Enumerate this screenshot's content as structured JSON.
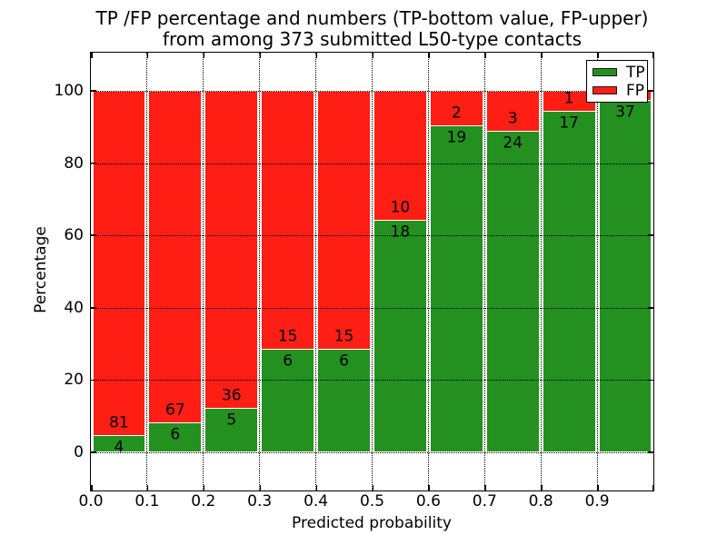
{
  "title": {
    "line1": "TP /FP percentage and numbers (TP-bottom value, FP-upper)",
    "line2": "from among 373 submitted L50-type contacts"
  },
  "axes": {
    "xlabel": "Predicted probability",
    "ylabel": "Percentage",
    "x_tick_labels": [
      "0.0",
      "0.1",
      "0.2",
      "0.3",
      "0.4",
      "0.5",
      "0.6",
      "0.7",
      "0.8",
      "0.9"
    ],
    "y_tick_labels": [
      "0",
      "20",
      "40",
      "60",
      "80",
      "100"
    ]
  },
  "legend": {
    "items": [
      {
        "label": "TP",
        "color": "#23901f"
      },
      {
        "label": "FP",
        "color": "#ff1e14"
      }
    ]
  },
  "colors": {
    "tp": "#23901f",
    "fp": "#ff1e14",
    "bar_edge": "#ffffff",
    "grid": "#000000",
    "frame": "#000000",
    "background": "#ffffff"
  },
  "chart_data": {
    "type": "stacked-bar-percentage",
    "title": "TP /FP percentage and numbers (TP-bottom value, FP-upper) from among 373 submitted L50-type contacts",
    "xlabel": "Predicted probability",
    "ylabel": "Percentage",
    "total_contacts": 373,
    "bin_width": 0.1,
    "xlim": [
      0.0,
      1.0
    ],
    "ylim_approx": [
      -10.7,
      110.4
    ],
    "y_ticks": [
      0,
      20,
      40,
      60,
      80,
      100
    ],
    "x_ticks": [
      0.0,
      0.1,
      0.2,
      0.3,
      0.4,
      0.5,
      0.6,
      0.7,
      0.8,
      0.9
    ],
    "grid": "dotted black, both axes, drawn over bars",
    "legend_position": "upper right",
    "series_order_bottom_to_top": [
      "TP",
      "FP"
    ],
    "bins": [
      {
        "range": "0.0-0.1",
        "tp": 4,
        "fp": 81,
        "tp_pct": 4.706,
        "fp_pct": 95.294
      },
      {
        "range": "0.1-0.2",
        "tp": 6,
        "fp": 67,
        "tp_pct": 8.219,
        "fp_pct": 91.781
      },
      {
        "range": "0.2-0.3",
        "tp": 5,
        "fp": 36,
        "tp_pct": 12.195,
        "fp_pct": 87.805
      },
      {
        "range": "0.3-0.4",
        "tp": 6,
        "fp": 15,
        "tp_pct": 28.571,
        "fp_pct": 71.429
      },
      {
        "range": "0.4-0.5",
        "tp": 6,
        "fp": 15,
        "tp_pct": 28.571,
        "fp_pct": 71.429
      },
      {
        "range": "0.5-0.6",
        "tp": 18,
        "fp": 10,
        "tp_pct": 64.286,
        "fp_pct": 35.714
      },
      {
        "range": "0.6-0.7",
        "tp": 19,
        "fp": 2,
        "tp_pct": 90.476,
        "fp_pct": 9.524
      },
      {
        "range": "0.7-0.8",
        "tp": 24,
        "fp": 3,
        "tp_pct": 88.889,
        "fp_pct": 11.111
      },
      {
        "range": "0.8-0.9",
        "tp": 17,
        "fp": 1,
        "tp_pct": 94.444,
        "fp_pct": 5.556
      },
      {
        "range": "0.9-1.0",
        "tp": 37,
        "fp": 1,
        "tp_pct": 97.368,
        "fp_pct": 2.632,
        "fp_label_visible": false
      }
    ]
  }
}
